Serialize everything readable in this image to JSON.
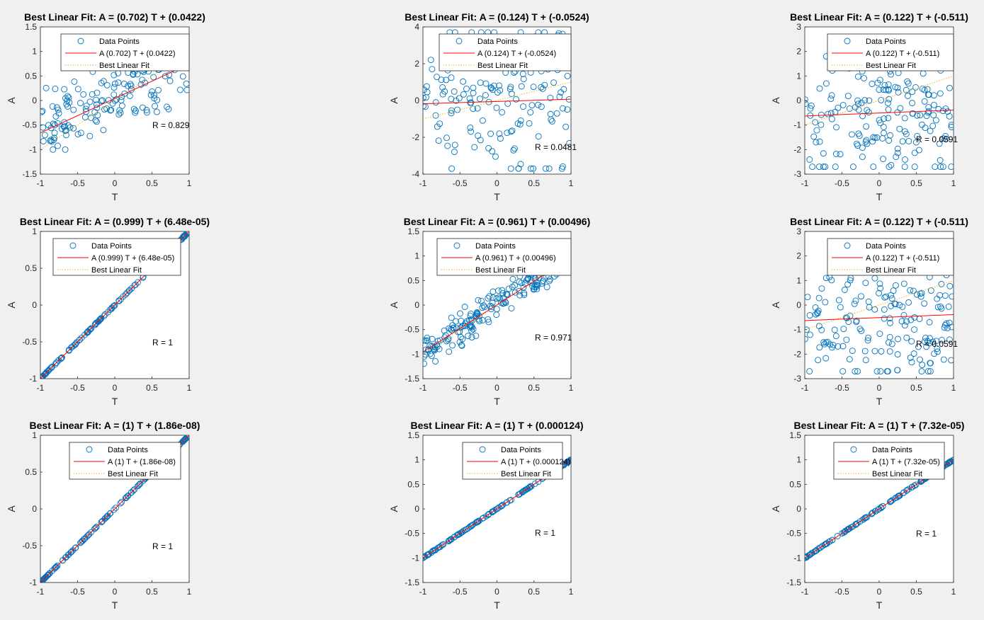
{
  "figure": {
    "background": "#f0f0f0"
  },
  "styles": {
    "marker_color": "#0072bd",
    "fit_color": "#ff0000",
    "best_fit_color": "#edb120"
  },
  "chart_data": [
    {
      "type": "scatter",
      "title": "Best Linear Fit:  A = (0.702) T + (0.0422)",
      "xlabel": "T",
      "ylabel": "A",
      "xlim": [
        -1,
        1
      ],
      "ylim": [
        -1.5,
        1.5
      ],
      "xticks": [
        "-1",
        "-0.5",
        "0",
        "0.5",
        "1"
      ],
      "yticks": [
        "-1.5",
        "-1",
        "-0.5",
        "0",
        "0.5",
        "1",
        "1.5"
      ],
      "legend": [
        "Data Points",
        "A (0.702) T + (0.0422)",
        "Best Linear Fit"
      ],
      "legend_position": "top-right",
      "annotation": "R = 0.829",
      "fit": {
        "slope": 0.702,
        "intercept": 0.0422
      },
      "points": {
        "count": 160,
        "noise": 0.38,
        "clip": [
          -1.0,
          1.0
        ],
        "saturated": false
      }
    },
    {
      "type": "scatter",
      "title": "Best Linear Fit:  A = (0.124) T + (-0.0524)",
      "xlabel": "T",
      "ylabel": "A",
      "xlim": [
        -1,
        1
      ],
      "ylim": [
        -4,
        4
      ],
      "xticks": [
        "-1",
        "-0.5",
        "0",
        "0.5",
        "1"
      ],
      "yticks": [
        "-4",
        "-2",
        "0",
        "2",
        "4"
      ],
      "legend": [
        "Data Points",
        "A (0.124) T + (-0.0524)",
        "Best Linear Fit"
      ],
      "legend_position": "top-right",
      "annotation": "R = 0.0481",
      "fit": {
        "slope": 0.124,
        "intercept": -0.0524
      },
      "points": {
        "count": 170,
        "noise": 2.0,
        "clip": [
          -3.7,
          3.7
        ],
        "saturated": false
      }
    },
    {
      "type": "scatter",
      "title": "Best Linear Fit:  A = (0.122) T + (-0.511)",
      "xlabel": "T",
      "ylabel": "A",
      "xlim": [
        -1,
        1
      ],
      "ylim": [
        -3,
        3
      ],
      "xticks": [
        "-1",
        "-0.5",
        "0",
        "0.5",
        "1"
      ],
      "yticks": [
        "-3",
        "-2",
        "-1",
        "0",
        "1",
        "2",
        "3"
      ],
      "legend": [
        "Data Points",
        "A (0.122) T + (-0.511)",
        "Best Linear Fit"
      ],
      "legend_position": "top-right",
      "annotation": "R = 0.0591",
      "fit": {
        "slope": 0.122,
        "intercept": -0.511
      },
      "points": {
        "count": 180,
        "noise": 1.4,
        "clip": [
          -2.7,
          1.8
        ],
        "saturated": false
      }
    },
    {
      "type": "scatter",
      "title": "Best Linear Fit:  A = (0.999) T + (6.48e-05)",
      "xlabel": "T",
      "ylabel": "A",
      "xlim": [
        -1,
        1
      ],
      "ylim": [
        -1,
        1
      ],
      "xticks": [
        "-1",
        "-0.5",
        "0",
        "0.5",
        "1"
      ],
      "yticks": [
        "-1",
        "-0.5",
        "0",
        "0.5",
        "1"
      ],
      "legend": [
        "Data Points",
        "A (0.999) T + (6.48e-05)",
        "Best Linear Fit"
      ],
      "legend_position": "top-right",
      "annotation": "R = 1",
      "fit": {
        "slope": 0.999,
        "intercept": 6.48e-05
      },
      "points": {
        "count": 150,
        "noise": 0.004,
        "clip": [
          -1,
          1
        ],
        "saturated": true
      }
    },
    {
      "type": "scatter",
      "title": "Best Linear Fit:  A = (0.961) T + (0.00496)",
      "xlabel": "T",
      "ylabel": "A",
      "xlim": [
        -1,
        1
      ],
      "ylim": [
        -1.5,
        1.5
      ],
      "xticks": [
        "-1",
        "-0.5",
        "0",
        "0.5",
        "1"
      ],
      "yticks": [
        "-1.5",
        "-1",
        "-0.5",
        "0",
        "0.5",
        "1",
        "1.5"
      ],
      "legend": [
        "Data Points",
        "A (0.961) T + (0.00496)",
        "Best Linear Fit"
      ],
      "legend_position": "top-right",
      "annotation": "R = 0.971",
      "fit": {
        "slope": 0.961,
        "intercept": 0.00496
      },
      "points": {
        "count": 200,
        "noise": 0.16,
        "clip": [
          -1.3,
          1.3
        ],
        "saturated": false
      }
    },
    {
      "type": "scatter",
      "title": "Best Linear Fit:  A = (0.122) T + (-0.511)",
      "xlabel": "T",
      "ylabel": "A",
      "xlim": [
        -1,
        1
      ],
      "ylim": [
        -3,
        3
      ],
      "xticks": [
        "-1",
        "-0.5",
        "0",
        "0.5",
        "1"
      ],
      "yticks": [
        "-3",
        "-2",
        "-1",
        "0",
        "1",
        "2",
        "3"
      ],
      "legend": [
        "Data Points",
        "A (0.122) T + (-0.511)",
        "Best Linear Fit"
      ],
      "legend_position": "top-right",
      "annotation": "R = 0.0591",
      "fit": {
        "slope": 0.122,
        "intercept": -0.511
      },
      "points": {
        "count": 180,
        "noise": 1.4,
        "clip": [
          -2.7,
          1.8
        ],
        "saturated": false
      }
    },
    {
      "type": "scatter",
      "title": "Best Linear Fit:  A = (1) T + (1.86e-08)",
      "xlabel": "T",
      "ylabel": "A",
      "xlim": [
        -1,
        1
      ],
      "ylim": [
        -1,
        1
      ],
      "xticks": [
        "-1",
        "-0.5",
        "0",
        "0.5",
        "1"
      ],
      "yticks": [
        "-1",
        "-0.5",
        "0",
        "0.5",
        "1"
      ],
      "legend": [
        "Data Points",
        "A (1) T + (1.86e-08)",
        "Best Linear Fit"
      ],
      "legend_position": "top-right",
      "annotation": "R = 1",
      "fit": {
        "slope": 1,
        "intercept": 1.86e-08
      },
      "points": {
        "count": 150,
        "noise": 0.0,
        "clip": [
          -1,
          1
        ],
        "saturated": true
      }
    },
    {
      "type": "scatter",
      "title": "Best Linear Fit:  A = (1) T + (0.000124)",
      "xlabel": "T",
      "ylabel": "A",
      "xlim": [
        -1,
        1
      ],
      "ylim": [
        -1.5,
        1.5
      ],
      "xticks": [
        "-1",
        "-0.5",
        "0",
        "0.5",
        "1"
      ],
      "yticks": [
        "-1.5",
        "-1",
        "-0.5",
        "0",
        "0.5",
        "1",
        "1.5"
      ],
      "legend": [
        "Data Points",
        "A (1) T + (0.000124)",
        "Best Linear Fit"
      ],
      "legend_position": "top-right",
      "annotation": "R = 1",
      "fit": {
        "slope": 1,
        "intercept": 0.000124
      },
      "points": {
        "count": 150,
        "noise": 0.004,
        "clip": [
          -1,
          1
        ],
        "saturated": true
      }
    },
    {
      "type": "scatter",
      "title": "Best Linear Fit:  A = (1) T + (7.32e-05)",
      "xlabel": "T",
      "ylabel": "A",
      "xlim": [
        -1,
        1
      ],
      "ylim": [
        -1.5,
        1.5
      ],
      "xticks": [
        "-1",
        "-0.5",
        "0",
        "0.5",
        "1"
      ],
      "yticks": [
        "-1.5",
        "-1",
        "-0.5",
        "0",
        "0.5",
        "1",
        "1.5"
      ],
      "legend": [
        "Data Points",
        "A (1) T + (7.32e-05)",
        "Best Linear Fit"
      ],
      "legend_position": "top-right",
      "annotation": "R = 1",
      "fit": {
        "slope": 1,
        "intercept": 7.32e-05
      },
      "points": {
        "count": 150,
        "noise": 0.004,
        "clip": [
          -1,
          1
        ],
        "saturated": true
      }
    }
  ]
}
